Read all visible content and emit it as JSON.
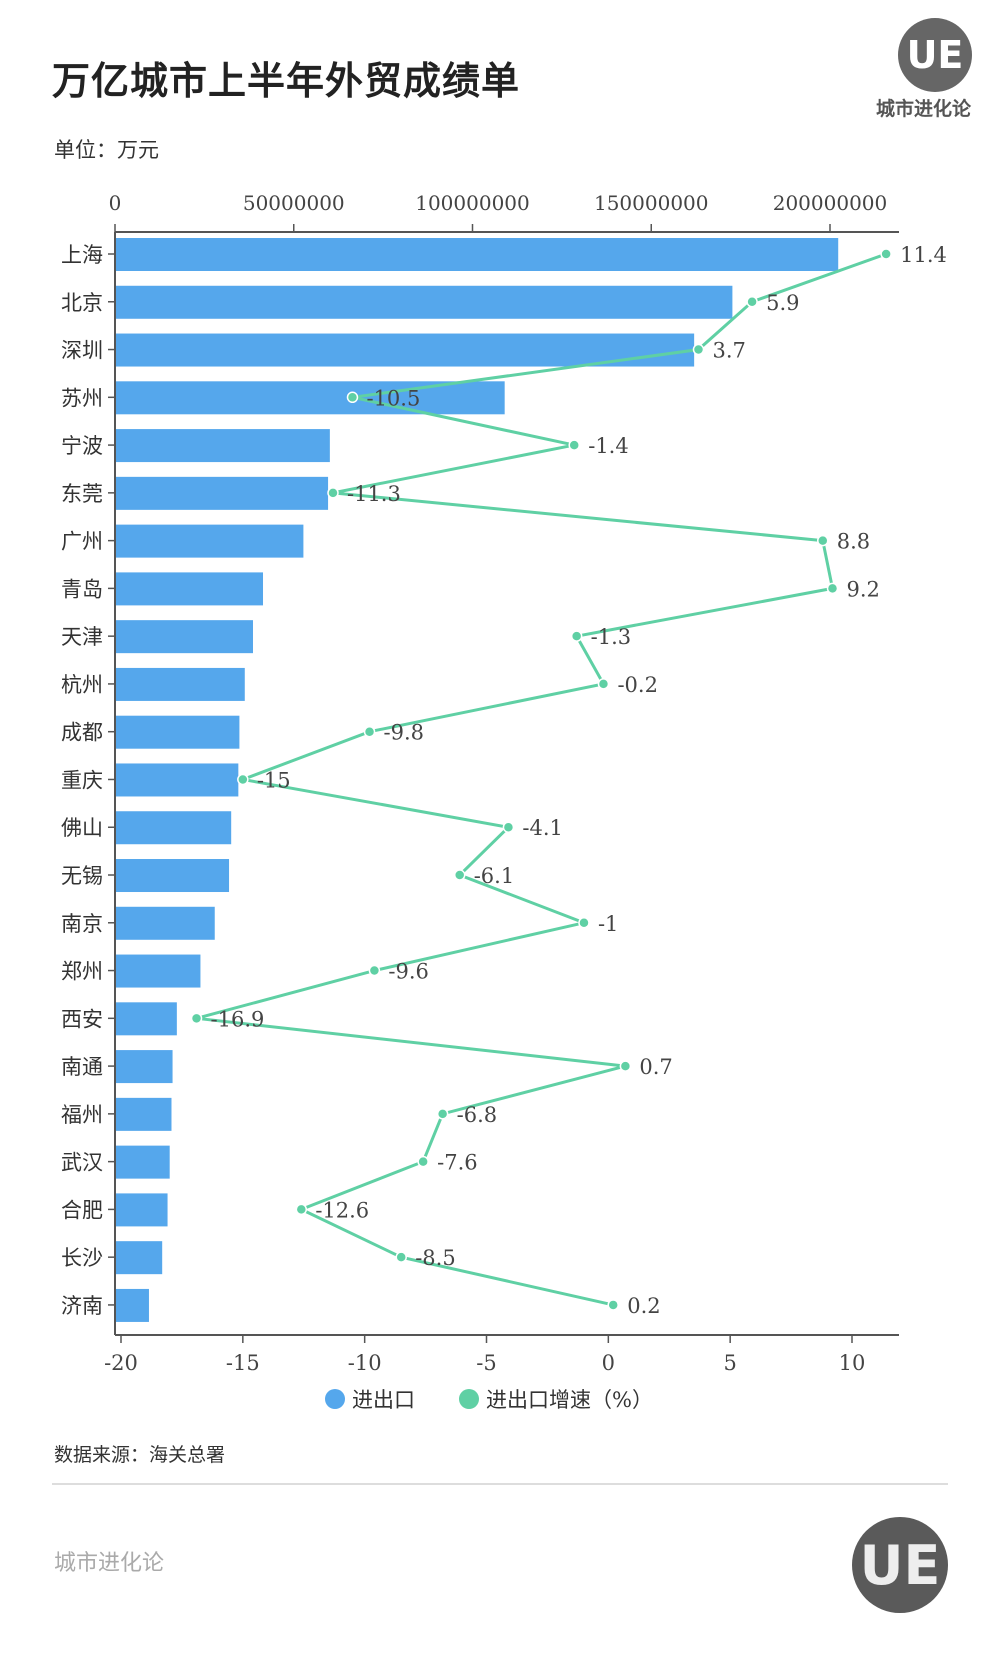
{
  "header": {
    "title": "万亿城市上半年外贸成绩单",
    "unit": "单位：万元",
    "logo_text": "城市进化论",
    "logo_mark": "UE"
  },
  "footer": {
    "source": "数据来源：海关总署",
    "brand": "城市进化论",
    "logo_mark": "UE"
  },
  "colors": {
    "bar": "#55a7ec",
    "line": "#5fd0a4"
  },
  "chart_data": {
    "type": "bar+line",
    "title": "万亿城市上半年外贸成绩单",
    "categories": [
      "上海",
      "北京",
      "深圳",
      "苏州",
      "宁波",
      "东莞",
      "广州",
      "青岛",
      "天津",
      "杭州",
      "成都",
      "重庆",
      "佛山",
      "无锡",
      "南京",
      "郑州",
      "西安",
      "南通",
      "福州",
      "武汉",
      "合肥",
      "长沙",
      "济南"
    ],
    "series": [
      {
        "name": "进出口",
        "axis": "top",
        "values": [
          202300000,
          172700000,
          162000000,
          109000000,
          60100000,
          59600000,
          52700000,
          41400000,
          38600000,
          36300000,
          34800000,
          34500000,
          32500000,
          31900000,
          27900000,
          23900000,
          17300000,
          16100000,
          15800000,
          15300000,
          14700000,
          13200000,
          9500000
        ]
      },
      {
        "name": "进出口增速（%）",
        "axis": "bottom",
        "values": [
          11.4,
          5.9,
          3.7,
          -10.5,
          -1.4,
          -11.3,
          8.8,
          9.2,
          -1.3,
          -0.2,
          -9.8,
          -15,
          -4.1,
          -6.1,
          -1,
          -9.6,
          -16.9,
          0.7,
          -6.8,
          -7.6,
          -12.6,
          -8.5,
          0.2
        ],
        "labels": [
          "11.4",
          "5.9",
          "3.7",
          "-10.5",
          "-1.4",
          "-11.3",
          "8.8",
          "9.2",
          "-1.3",
          "-0.2",
          "-9.8",
          "-15",
          "-4.1",
          "-6.1",
          "-1",
          "-9.6",
          "-16.9",
          "0.7",
          "-6.8",
          "-7.6",
          "-12.6",
          "-8.5",
          "0.2"
        ]
      }
    ],
    "top_axis": {
      "range": [
        0,
        200000000
      ],
      "ticks": [
        "0",
        "50000000",
        "100000000",
        "150000000",
        "200000000"
      ],
      "tick_values": [
        0,
        50000000,
        100000000,
        150000000,
        200000000
      ]
    },
    "bottom_axis": {
      "range": [
        -20,
        10
      ],
      "ticks": [
        "-20",
        "-15",
        "-10",
        "-5",
        "0",
        "5",
        "10"
      ],
      "tick_values": [
        -20,
        -15,
        -10,
        -5,
        0,
        5,
        10
      ]
    },
    "legend": {
      "position": "bottom",
      "items": [
        "进出口",
        "进出口增速（%）"
      ]
    }
  }
}
